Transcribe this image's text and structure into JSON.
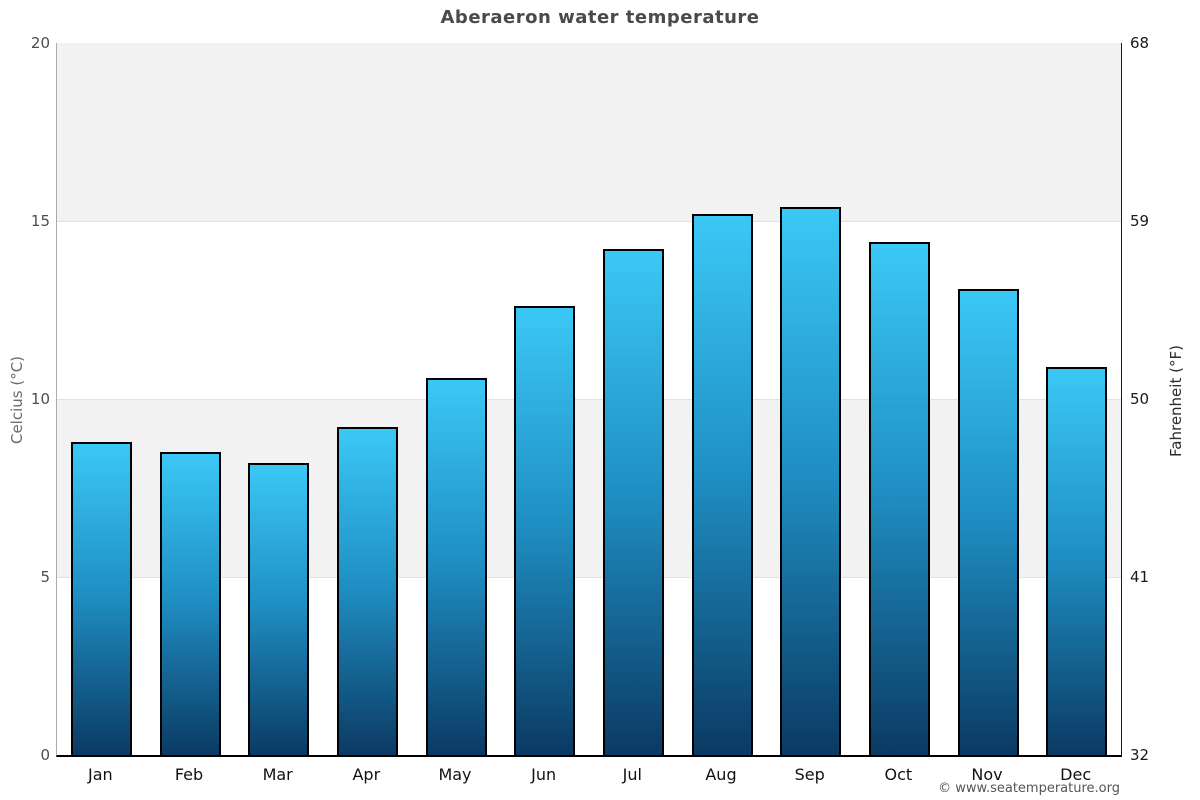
{
  "title": "Aberaeron water temperature",
  "footer": {
    "copyright": "© www.seatemperature.org"
  },
  "chart_data": {
    "type": "bar",
    "title": "Aberaeron water temperature",
    "categories": [
      "Jan",
      "Feb",
      "Mar",
      "Apr",
      "May",
      "Jun",
      "Jul",
      "Aug",
      "Sep",
      "Oct",
      "Nov",
      "Dec"
    ],
    "values": [
      8.8,
      8.5,
      8.2,
      9.2,
      10.6,
      12.6,
      14.2,
      15.2,
      15.4,
      14.4,
      13.1,
      10.9
    ],
    "series_name": "Water temperature (°C)",
    "ylabel_left": "Celcius (°C)",
    "ylabel_right": "Fahrenheit (°F)",
    "yticks_left": [
      0,
      5,
      10,
      15,
      20
    ],
    "yticks_right": [
      32,
      41,
      50,
      59,
      68
    ],
    "ylim": [
      0,
      20
    ],
    "grid": "horizontal-bands",
    "legend": "none",
    "bands_gray": [
      [
        5,
        10
      ],
      [
        15,
        20
      ]
    ],
    "band_color": "#f2f2f2",
    "gridline_color": "#e2e2e2",
    "bar_top_color": "#3bc8f6",
    "bar_mid_color": "#1f8fc3",
    "bar_bottom_color": "#0b3a63",
    "bar_border_color": "#000000"
  }
}
